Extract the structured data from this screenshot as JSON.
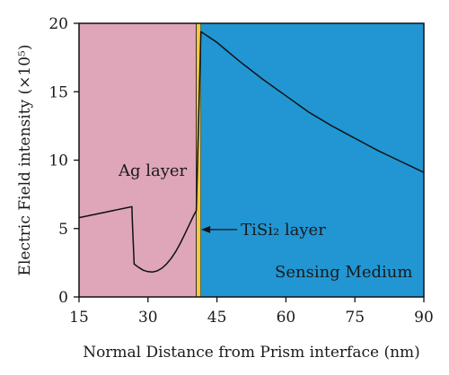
{
  "chart_data": {
    "type": "line",
    "title": "",
    "xlabel": "Normal Distance from Prism interface (nm)",
    "ylabel": "Electric Field intensity (×10⁵)",
    "xlim": [
      15,
      90
    ],
    "ylim": [
      0,
      20
    ],
    "x_ticks": [
      "15",
      "30",
      "45",
      "60",
      "75",
      "90"
    ],
    "y_ticks": [
      "0",
      "5",
      "10",
      "15",
      "20"
    ],
    "grid": false,
    "regions": [
      {
        "label": "Ag layer",
        "x_range": [
          15,
          40.5
        ],
        "color": "#dea6b8"
      },
      {
        "label": "TiSi₂ layer",
        "x_range": [
          40.5,
          41.5
        ],
        "color": "#f4c93a"
      },
      {
        "label": "Sensing Medium",
        "x_range": [
          41.5,
          90
        ],
        "color": "#2196d3"
      }
    ],
    "series": [
      {
        "color": "#111111",
        "x": [
          15,
          26.5,
          26.6,
          27,
          28,
          29,
          30,
          31,
          32,
          33,
          34,
          35,
          36,
          37,
          38,
          39,
          40,
          40.5,
          41.5,
          45,
          50,
          55,
          60,
          65,
          70,
          75,
          80,
          85,
          90
        ],
        "y": [
          5.8,
          6.6,
          5.5,
          2.4,
          2.15,
          1.95,
          1.85,
          1.82,
          1.9,
          2.1,
          2.4,
          2.8,
          3.3,
          3.9,
          4.6,
          5.3,
          6.0,
          6.3,
          19.4,
          18.6,
          17.2,
          15.9,
          14.7,
          13.5,
          12.5,
          11.6,
          10.7,
          9.9,
          9.1
        ]
      }
    ],
    "annotations": [
      {
        "text": "TiSi₂ layer",
        "arrow_to_x": 41,
        "y": 4.6
      }
    ]
  }
}
